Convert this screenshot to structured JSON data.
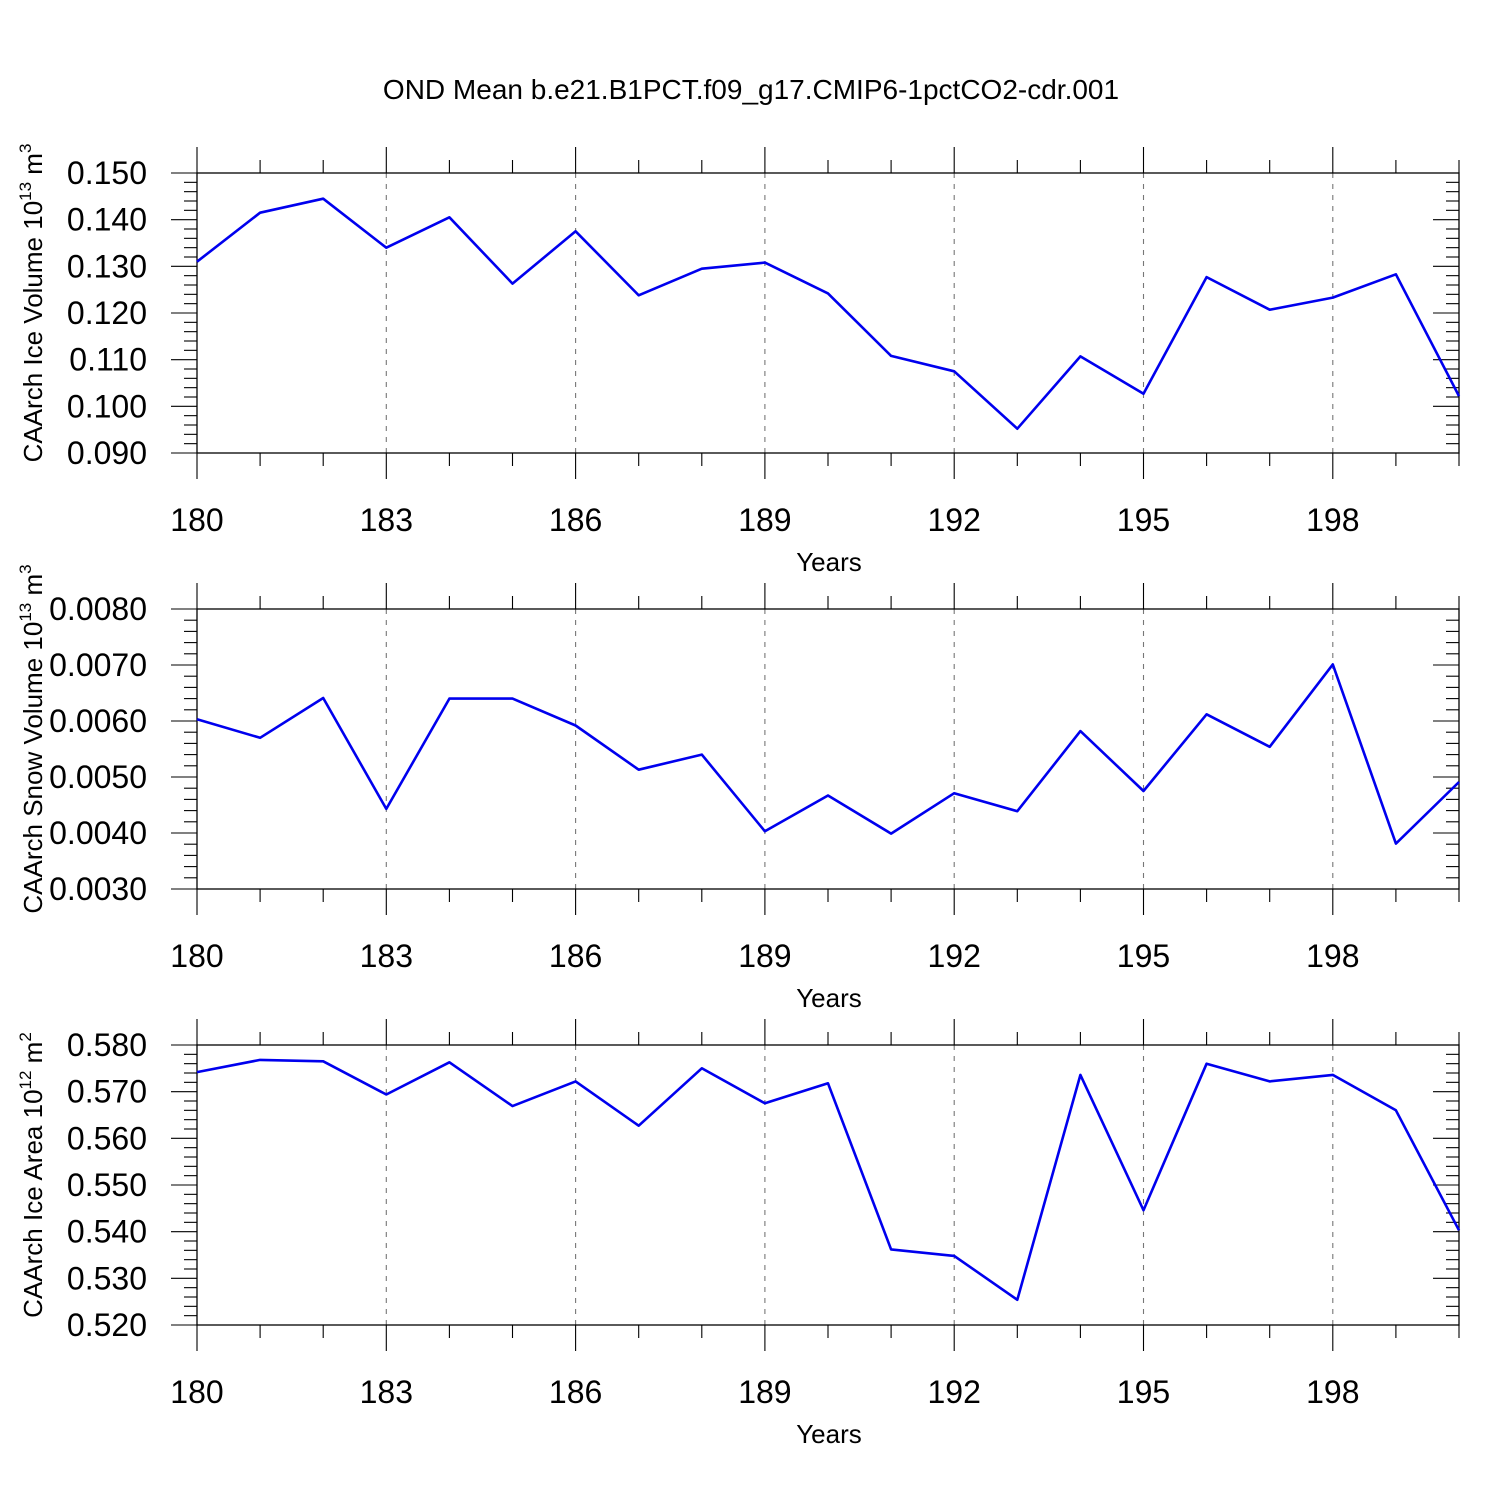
{
  "title": "OND Mean b.e21.B1PCT.f09_g17.CMIP6-1pctCO2-cdr.001",
  "colors": {
    "series": "#0000ee",
    "frame": "#000000",
    "grid": "#777777"
  },
  "chart_data": [
    {
      "type": "line",
      "xlabel": "Years",
      "ylabel_main": "CAArch Ice Volume 10",
      "ylabel_exp": "13",
      "ylabel_unit": " m",
      "ylabel_unit_exp": "3",
      "xlim": [
        180,
        200
      ],
      "ylim": [
        0.09,
        0.15
      ],
      "x_ticks": [
        180,
        183,
        186,
        189,
        192,
        195,
        198
      ],
      "x_tick_labels": [
        "180",
        "183",
        "186",
        "189",
        "192",
        "195",
        "198"
      ],
      "y_ticks": [
        0.09,
        0.1,
        0.11,
        0.12,
        0.13,
        0.14,
        0.15
      ],
      "y_tick_labels": [
        "0.090",
        "0.100",
        "0.110",
        "0.120",
        "0.130",
        "0.140",
        "0.150"
      ],
      "grid": "dashed-vertical",
      "x": [
        180,
        181,
        182,
        183,
        184,
        185,
        186,
        187,
        188,
        189,
        190,
        191,
        192,
        193,
        194,
        195,
        196,
        197,
        198,
        199,
        200
      ],
      "values": [
        0.131,
        0.1415,
        0.1445,
        0.134,
        0.1405,
        0.1263,
        0.1375,
        0.1238,
        0.1295,
        0.1308,
        0.1242,
        0.1108,
        0.1075,
        0.0952,
        0.1107,
        0.1027,
        0.1277,
        0.1207,
        0.1233,
        0.1283,
        0.1022
      ]
    },
    {
      "type": "line",
      "xlabel": "Years",
      "ylabel_main": "CAArch Snow Volume 10",
      "ylabel_exp": "13",
      "ylabel_unit": " m",
      "ylabel_unit_exp": "3",
      "xlim": [
        180,
        200
      ],
      "ylim": [
        0.003,
        0.008
      ],
      "x_ticks": [
        180,
        183,
        186,
        189,
        192,
        195,
        198
      ],
      "x_tick_labels": [
        "180",
        "183",
        "186",
        "189",
        "192",
        "195",
        "198"
      ],
      "y_ticks": [
        0.003,
        0.004,
        0.005,
        0.006,
        0.007,
        0.008
      ],
      "y_tick_labels": [
        "0.0030",
        "0.0040",
        "0.0050",
        "0.0060",
        "0.0070",
        "0.0080"
      ],
      "grid": "dashed-vertical",
      "x": [
        180,
        181,
        182,
        183,
        184,
        185,
        186,
        187,
        188,
        189,
        190,
        191,
        192,
        193,
        194,
        195,
        196,
        197,
        198,
        199,
        200
      ],
      "values": [
        0.00603,
        0.0057,
        0.00641,
        0.00443,
        0.0064,
        0.0064,
        0.00592,
        0.00513,
        0.0054,
        0.00403,
        0.00467,
        0.00399,
        0.00471,
        0.00439,
        0.00582,
        0.00475,
        0.00612,
        0.00554,
        0.00701,
        0.00381,
        0.00491
      ]
    },
    {
      "type": "line",
      "xlabel": "Years",
      "ylabel_main": "CAArch Ice Area 10",
      "ylabel_exp": "12",
      "ylabel_unit": " m",
      "ylabel_unit_exp": "2",
      "xlim": [
        180,
        200
      ],
      "ylim": [
        0.52,
        0.58
      ],
      "x_ticks": [
        180,
        183,
        186,
        189,
        192,
        195,
        198
      ],
      "x_tick_labels": [
        "180",
        "183",
        "186",
        "189",
        "192",
        "195",
        "198"
      ],
      "y_ticks": [
        0.52,
        0.53,
        0.54,
        0.55,
        0.56,
        0.57,
        0.58
      ],
      "y_tick_labels": [
        "0.520",
        "0.530",
        "0.540",
        "0.550",
        "0.560",
        "0.570",
        "0.580"
      ],
      "grid": "dashed-vertical",
      "x": [
        180,
        181,
        182,
        183,
        184,
        185,
        186,
        187,
        188,
        189,
        190,
        191,
        192,
        193,
        194,
        195,
        196,
        197,
        198,
        199,
        200
      ],
      "values": [
        0.5742,
        0.5768,
        0.5765,
        0.5694,
        0.5763,
        0.5669,
        0.5722,
        0.5627,
        0.575,
        0.5675,
        0.5718,
        0.5362,
        0.5348,
        0.5254,
        0.5736,
        0.5446,
        0.576,
        0.5722,
        0.5736,
        0.566,
        0.5403
      ]
    }
  ]
}
